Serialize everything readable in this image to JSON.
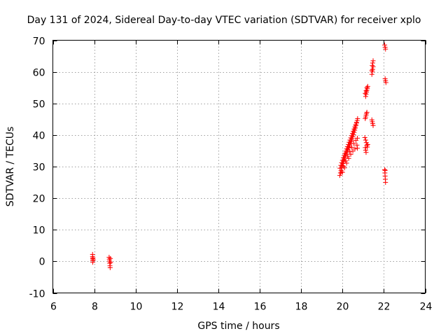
{
  "chart_data": {
    "type": "scatter",
    "title": "Day 131 of 2024, Sidereal Day-to-day VTEC variation (SDTVAR) for receiver xplo",
    "xlabel": "GPS time / hours",
    "ylabel": "SDTVAR / TECUs",
    "xlim": [
      6,
      24
    ],
    "ylim": [
      -10,
      70
    ],
    "xticks": [
      6,
      8,
      10,
      12,
      14,
      16,
      18,
      20,
      22,
      24
    ],
    "yticks": [
      -10,
      0,
      10,
      20,
      30,
      40,
      50,
      60,
      70
    ],
    "grid": true,
    "marker": "+",
    "series_color": "#ff0000",
    "series": [
      {
        "name": "SDTVAR",
        "points": [
          [
            7.92,
            2.2
          ],
          [
            7.92,
            1.5
          ],
          [
            7.93,
            0.9
          ],
          [
            7.93,
            0.3
          ],
          [
            7.93,
            -0.3
          ],
          [
            7.94,
            1.1
          ],
          [
            7.95,
            0.5
          ],
          [
            8.72,
            1.3
          ],
          [
            8.73,
            0.7
          ],
          [
            8.74,
            0.1
          ],
          [
            8.75,
            -0.6
          ],
          [
            8.76,
            -1.4
          ],
          [
            8.77,
            -2.0
          ],
          [
            8.78,
            0.9
          ],
          [
            8.79,
            -0.3
          ],
          [
            19.87,
            27.2
          ],
          [
            19.9,
            28.0
          ],
          [
            19.93,
            28.8
          ],
          [
            19.96,
            29.6
          ],
          [
            19.99,
            30.3
          ],
          [
            20.02,
            31.0
          ],
          [
            20.05,
            31.6
          ],
          [
            20.08,
            32.2
          ],
          [
            20.11,
            32.8
          ],
          [
            20.14,
            33.4
          ],
          [
            20.17,
            33.9
          ],
          [
            20.2,
            34.4
          ],
          [
            20.23,
            34.9
          ],
          [
            20.26,
            35.4
          ],
          [
            20.29,
            35.9
          ],
          [
            20.32,
            36.4
          ],
          [
            20.35,
            36.9
          ],
          [
            20.38,
            37.4
          ],
          [
            20.41,
            37.9
          ],
          [
            20.44,
            38.4
          ],
          [
            20.47,
            38.9
          ],
          [
            20.5,
            39.5
          ],
          [
            20.53,
            40.1
          ],
          [
            20.56,
            40.8
          ],
          [
            20.59,
            41.5
          ],
          [
            20.62,
            42.2
          ],
          [
            20.65,
            43.0
          ],
          [
            20.68,
            43.8
          ],
          [
            20.71,
            44.6
          ],
          [
            20.73,
            45.2
          ],
          [
            19.88,
            29.5
          ],
          [
            19.92,
            30.4
          ],
          [
            19.96,
            31.2
          ],
          [
            20.0,
            32.0
          ],
          [
            20.04,
            32.8
          ],
          [
            20.08,
            33.5
          ],
          [
            20.12,
            34.2
          ],
          [
            20.16,
            34.9
          ],
          [
            20.2,
            35.6
          ],
          [
            20.24,
            36.3
          ],
          [
            20.28,
            37.0
          ],
          [
            20.32,
            37.7
          ],
          [
            20.36,
            38.4
          ],
          [
            20.4,
            39.1
          ],
          [
            20.44,
            39.8
          ],
          [
            20.48,
            40.5
          ],
          [
            20.52,
            41.2
          ],
          [
            20.56,
            41.9
          ],
          [
            20.6,
            42.6
          ],
          [
            20.64,
            43.3
          ],
          [
            20.68,
            44.0
          ],
          [
            19.95,
            28.3
          ],
          [
            20.05,
            30.1
          ],
          [
            20.15,
            31.8
          ],
          [
            20.25,
            33.3
          ],
          [
            20.35,
            34.8
          ],
          [
            20.45,
            36.1
          ],
          [
            20.55,
            37.3
          ],
          [
            20.65,
            38.3
          ],
          [
            20.72,
            39.0
          ],
          [
            20.7,
            36.8
          ],
          [
            20.72,
            35.8
          ],
          [
            20.6,
            35.6
          ],
          [
            20.5,
            34.9
          ],
          [
            20.4,
            33.9
          ],
          [
            20.3,
            32.6
          ],
          [
            20.2,
            31.1
          ],
          [
            20.1,
            29.6
          ],
          [
            20.0,
            28.2
          ],
          [
            21.08,
            39.2
          ],
          [
            21.12,
            38.4
          ],
          [
            21.15,
            37.6
          ],
          [
            21.18,
            36.8
          ],
          [
            21.12,
            35.2
          ],
          [
            21.2,
            36.2
          ],
          [
            21.22,
            37.0
          ],
          [
            21.1,
            36.0
          ],
          [
            21.14,
            34.5
          ],
          [
            21.1,
            45.2
          ],
          [
            21.12,
            45.7
          ],
          [
            21.14,
            46.3
          ],
          [
            21.16,
            46.8
          ],
          [
            21.18,
            47.2
          ],
          [
            21.12,
            52.2
          ],
          [
            21.14,
            52.9
          ],
          [
            21.16,
            53.6
          ],
          [
            21.18,
            54.2
          ],
          [
            21.2,
            54.8
          ],
          [
            21.22,
            55.4
          ],
          [
            21.1,
            53.2
          ],
          [
            21.14,
            54.0
          ],
          [
            21.18,
            55.0
          ],
          [
            21.42,
            44.8
          ],
          [
            21.44,
            44.2
          ],
          [
            21.46,
            43.6
          ],
          [
            21.48,
            43.0
          ],
          [
            21.42,
            59.2
          ],
          [
            21.44,
            60.0
          ],
          [
            21.46,
            60.8
          ],
          [
            21.48,
            61.6
          ],
          [
            21.44,
            62.0
          ],
          [
            21.46,
            62.8
          ],
          [
            21.48,
            63.5
          ],
          [
            21.42,
            60.5
          ],
          [
            22.04,
            68.5
          ],
          [
            22.06,
            67.8
          ],
          [
            22.08,
            67.2
          ],
          [
            22.06,
            57.8
          ],
          [
            22.08,
            57.2
          ],
          [
            22.1,
            56.6
          ],
          [
            22.04,
            29.0
          ],
          [
            22.05,
            28.0
          ],
          [
            22.06,
            27.0
          ],
          [
            22.07,
            26.0
          ],
          [
            22.08,
            25.0
          ],
          [
            22.06,
            28.8
          ]
        ]
      }
    ]
  }
}
